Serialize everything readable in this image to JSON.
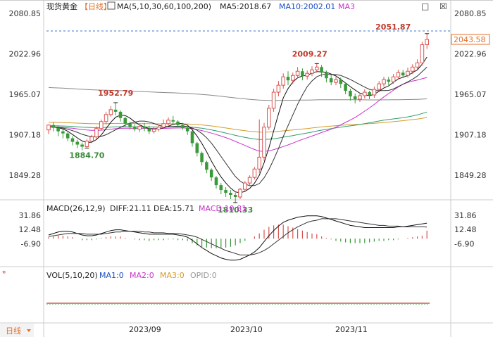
{
  "header": {
    "instrument": "现货黄金",
    "period_tag": "【日线】",
    "ma_label": "MA(5,10,30,60,100,200)",
    "ma5": "MA5:2018.67",
    "ma10": "MA10:2002.01",
    "ma3": "MA3"
  },
  "window_controls": {
    "restore": "□",
    "close": "☒"
  },
  "macd": {
    "label": "MACD(26,12,9)",
    "diff": "DIFF:21.11",
    "dea": "DEA:15.71",
    "macd": "MACD:10.81",
    "ticks": [
      "31.86",
      "12.48",
      "-6.90"
    ]
  },
  "vol": {
    "label": "VOL(5,10,20)",
    "ma1": "MA1:0",
    "ma2": "MA2:0",
    "ma3": "MA3:0",
    "opid": "OPID:0"
  },
  "footer": {
    "period_button": "日线",
    "dates": [
      "2023/09",
      "2023/10",
      "2023/11"
    ]
  },
  "colors": {
    "up": "#d9534f",
    "down": "#3a9a3a",
    "ma5": "#111111",
    "ma10": "#333333",
    "ma30": "#cc33cc",
    "ma60": "#2e9e6a",
    "ma100": "#d79a2a",
    "ma200": "#888888",
    "axis": "#333333",
    "marker_red": "#c0392b",
    "marker_green": "#3a8a3a"
  },
  "chart_data": {
    "type": "candlestick",
    "y_ticks": [
      "2080.85",
      "2022.96",
      "1965.07",
      "1907.18",
      "1849.28"
    ],
    "ylim": [
      1820,
      2080.85
    ],
    "current_price": "2043.58",
    "annotations": {
      "high_aug": "1952.79",
      "low_aug": "1884.70",
      "low_oct": "1810.33",
      "high_oct": "2009.27",
      "high_nov": "2051.87"
    },
    "candles": [
      [
        1914,
        1921,
        1922,
        1908
      ],
      [
        1921,
        1917,
        1925,
        1912
      ],
      [
        1917,
        1912,
        1920,
        1905
      ],
      [
        1912,
        1909,
        1915,
        1902
      ],
      [
        1909,
        1902,
        1911,
        1898
      ],
      [
        1902,
        1897,
        1905,
        1892
      ],
      [
        1897,
        1893,
        1900,
        1888
      ],
      [
        1893,
        1890,
        1896,
        1885
      ],
      [
        1890,
        1898,
        1901,
        1888
      ],
      [
        1898,
        1904,
        1907,
        1895
      ],
      [
        1904,
        1916,
        1919,
        1901
      ],
      [
        1916,
        1926,
        1929,
        1913
      ],
      [
        1926,
        1936,
        1940,
        1922
      ],
      [
        1936,
        1943,
        1948,
        1933
      ],
      [
        1943,
        1940,
        1953,
        1935
      ],
      [
        1940,
        1931,
        1942,
        1926
      ],
      [
        1931,
        1923,
        1933,
        1918
      ],
      [
        1923,
        1918,
        1926,
        1914
      ],
      [
        1918,
        1915,
        1922,
        1912
      ],
      [
        1915,
        1919,
        1922,
        1911
      ],
      [
        1919,
        1916,
        1924,
        1912
      ],
      [
        1916,
        1912,
        1920,
        1908
      ],
      [
        1912,
        1915,
        1918,
        1909
      ],
      [
        1915,
        1918,
        1921,
        1912
      ],
      [
        1918,
        1923,
        1929,
        1916
      ],
      [
        1923,
        1928,
        1932,
        1920
      ],
      [
        1928,
        1926,
        1934,
        1922
      ],
      [
        1926,
        1921,
        1928,
        1918
      ],
      [
        1921,
        1917,
        1924,
        1914
      ],
      [
        1917,
        1912,
        1919,
        1907
      ],
      [
        1912,
        1895,
        1913,
        1890
      ],
      [
        1895,
        1881,
        1897,
        1876
      ],
      [
        1881,
        1868,
        1883,
        1863
      ],
      [
        1868,
        1857,
        1870,
        1852
      ],
      [
        1857,
        1846,
        1859,
        1841
      ],
      [
        1846,
        1835,
        1848,
        1830
      ],
      [
        1835,
        1828,
        1838,
        1822
      ],
      [
        1828,
        1824,
        1832,
        1818
      ],
      [
        1824,
        1821,
        1828,
        1815
      ],
      [
        1821,
        1818,
        1824,
        1810
      ],
      [
        1818,
        1829,
        1831,
        1815
      ],
      [
        1829,
        1838,
        1841,
        1826
      ],
      [
        1838,
        1846,
        1849,
        1834
      ],
      [
        1846,
        1858,
        1861,
        1843
      ],
      [
        1858,
        1875,
        1929,
        1852
      ],
      [
        1875,
        1918,
        1924,
        1870
      ],
      [
        1918,
        1945,
        1950,
        1914
      ],
      [
        1945,
        1968,
        1973,
        1940
      ],
      [
        1968,
        1978,
        1984,
        1962
      ],
      [
        1978,
        1990,
        1995,
        1973
      ],
      [
        1990,
        1985,
        1998,
        1978
      ],
      [
        1985,
        1992,
        1996,
        1980
      ],
      [
        1992,
        1998,
        2004,
        1988
      ],
      [
        1998,
        1991,
        2002,
        1985
      ],
      [
        1991,
        1995,
        1999,
        1986
      ],
      [
        1995,
        2000,
        2005,
        1991
      ],
      [
        2000,
        2004,
        2009,
        1996
      ],
      [
        2004,
        1996,
        2007,
        1990
      ],
      [
        1996,
        1988,
        1999,
        1982
      ],
      [
        1988,
        1982,
        1992,
        1978
      ],
      [
        1982,
        1986,
        1990,
        1978
      ],
      [
        1986,
        1980,
        1989,
        1974
      ],
      [
        1980,
        1970,
        1982,
        1965
      ],
      [
        1970,
        1962,
        1973,
        1956
      ],
      [
        1962,
        1958,
        1966,
        1952
      ],
      [
        1958,
        1963,
        1967,
        1954
      ],
      [
        1963,
        1968,
        1972,
        1959
      ],
      [
        1968,
        1964,
        1970,
        1958
      ],
      [
        1964,
        1972,
        1976,
        1960
      ],
      [
        1972,
        1980,
        1984,
        1968
      ],
      [
        1980,
        1986,
        1990,
        1976
      ],
      [
        1986,
        1983,
        1990,
        1978
      ],
      [
        1983,
        1990,
        1994,
        1980
      ],
      [
        1990,
        1996,
        2000,
        1986
      ],
      [
        1996,
        1992,
        2000,
        1988
      ],
      [
        1992,
        1998,
        2003,
        1989
      ],
      [
        1998,
        2004,
        2008,
        1994
      ],
      [
        2004,
        2010,
        2015,
        2000
      ],
      [
        2010,
        2036,
        2040,
        2006
      ],
      [
        2036,
        2043.58,
        2051.87,
        2030
      ]
    ],
    "macd": {
      "ylim": [
        -35,
        45
      ],
      "diff": [
        5,
        7,
        9,
        10,
        10,
        9,
        7,
        5,
        4,
        4,
        5,
        7,
        9,
        11,
        12,
        12,
        11,
        10,
        9,
        8,
        7,
        6,
        6,
        6,
        6,
        6,
        6,
        5,
        4,
        2,
        -2,
        -7,
        -12,
        -16,
        -20,
        -23,
        -26,
        -28,
        -29,
        -29,
        -28,
        -25,
        -22,
        -18,
        -12,
        -4,
        4,
        11,
        17,
        22,
        25,
        27,
        29,
        30,
        31,
        31,
        31,
        30,
        28,
        26,
        24,
        22,
        20,
        18,
        17,
        16,
        15,
        15,
        15,
        15,
        15,
        15,
        15,
        16,
        16,
        17,
        18,
        19,
        20,
        21.11
      ],
      "dea": [
        3,
        4,
        5,
        6,
        7,
        7,
        7,
        7,
        6,
        6,
        6,
        6,
        7,
        8,
        9,
        9,
        10,
        10,
        10,
        10,
        9,
        9,
        8,
        8,
        8,
        7,
        7,
        7,
        6,
        5,
        4,
        2,
        -1,
        -4,
        -7,
        -10,
        -13,
        -16,
        -18,
        -20,
        -22,
        -22,
        -22,
        -21,
        -19,
        -16,
        -12,
        -7,
        -2,
        3,
        8,
        12,
        16,
        19,
        22,
        24,
        25,
        27,
        27,
        27,
        27,
        26,
        25,
        24,
        23,
        22,
        21,
        20,
        19,
        18,
        18,
        17,
        17,
        17,
        16,
        16,
        16,
        16,
        16,
        15.71
      ],
      "bars": [
        2,
        3,
        4,
        4,
        3,
        2,
        0,
        -2,
        -2,
        -2,
        -1,
        1,
        2,
        3,
        3,
        3,
        1,
        0,
        -1,
        -2,
        -2,
        -3,
        -2,
        -2,
        -2,
        -1,
        -1,
        -2,
        -2,
        -3,
        -6,
        -9,
        -11,
        -12,
        -13,
        -13,
        -13,
        -12,
        -11,
        -9,
        -6,
        -3,
        0,
        3,
        7,
        12,
        16,
        18,
        19,
        19,
        17,
        15,
        13,
        11,
        9,
        7,
        6,
        3,
        1,
        -1,
        -3,
        -4,
        -5,
        -6,
        -6,
        -6,
        -6,
        -5,
        -4,
        -3,
        -3,
        -2,
        -2,
        -1,
        0,
        1,
        2,
        3,
        4,
        10.81
      ]
    }
  }
}
